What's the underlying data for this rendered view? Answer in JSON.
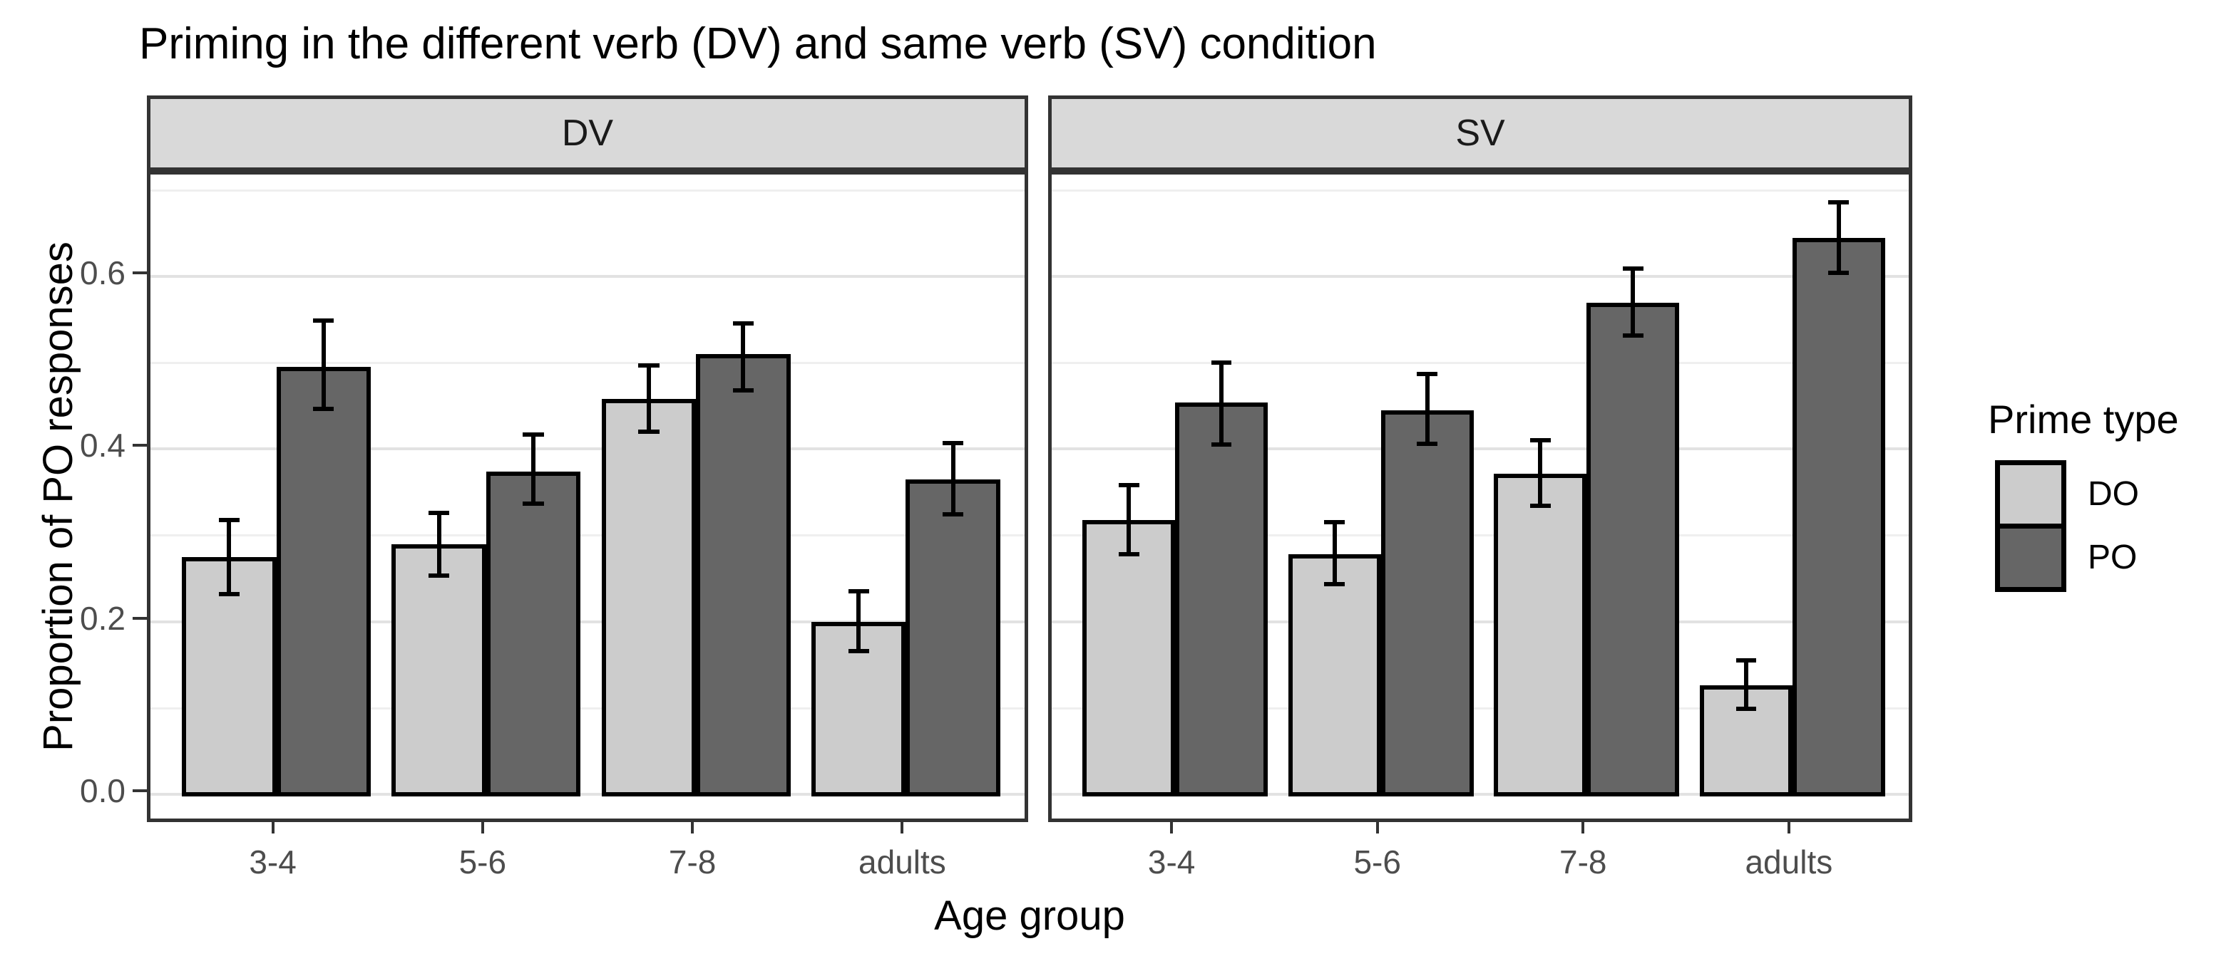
{
  "chart_data": {
    "type": "bar",
    "title": "Priming in the different verb (DV) and same verb (SV) condition",
    "xlabel": "Age group",
    "ylabel": "Proportion of PO responses",
    "categories": [
      "3-4",
      "5-6",
      "7-8",
      "adults"
    ],
    "y_tick_labels": [
      "0.0",
      "0.2",
      "0.4",
      "0.6"
    ],
    "y_tick_values": [
      0.0,
      0.2,
      0.4,
      0.6
    ],
    "y_minor_values": [
      0.1,
      0.3,
      0.5,
      0.7
    ],
    "ylim": [
      -0.036,
      0.718
    ],
    "grid": true,
    "legend_position": "right",
    "error_bars": true,
    "facets": [
      {
        "label": "DV",
        "series": [
          {
            "name": "DO",
            "values": [
              0.275,
              0.29,
              0.458,
              0.2
            ],
            "err_low": [
              0.232,
              0.253,
              0.42,
              0.166
            ],
            "err_high": [
              0.318,
              0.326,
              0.497,
              0.235
            ]
          },
          {
            "name": "PO",
            "values": [
              0.495,
              0.374,
              0.51,
              0.365
            ],
            "err_low": [
              0.446,
              0.337,
              0.468,
              0.324
            ],
            "err_high": [
              0.549,
              0.417,
              0.545,
              0.407
            ]
          }
        ]
      },
      {
        "label": "SV",
        "series": [
          {
            "name": "DO",
            "values": [
              0.318,
              0.278,
              0.371,
              0.126
            ],
            "err_low": [
              0.278,
              0.243,
              0.334,
              0.099
            ],
            "err_high": [
              0.358,
              0.315,
              0.41,
              0.155
            ]
          },
          {
            "name": "PO",
            "values": [
              0.454,
              0.445,
              0.569,
              0.644
            ],
            "err_low": [
              0.405,
              0.406,
              0.531,
              0.604
            ],
            "err_high": [
              0.5,
              0.487,
              0.609,
              0.686
            ]
          }
        ]
      }
    ],
    "legend": {
      "title": "Prime type",
      "entries": [
        {
          "label": "DO",
          "color": "#cccccc"
        },
        {
          "label": "PO",
          "color": "#666666"
        }
      ]
    },
    "colors": {
      "bar_do": "#cccccc",
      "bar_po": "#666666",
      "bar_outline": "#000000",
      "panel_border": "#333333",
      "strip_fill": "#d9d9d9",
      "grid_major": "#e2e2e2",
      "grid_minor": "#efefef",
      "axis_text": "#4d4d4d",
      "title_text": "#000000"
    }
  }
}
